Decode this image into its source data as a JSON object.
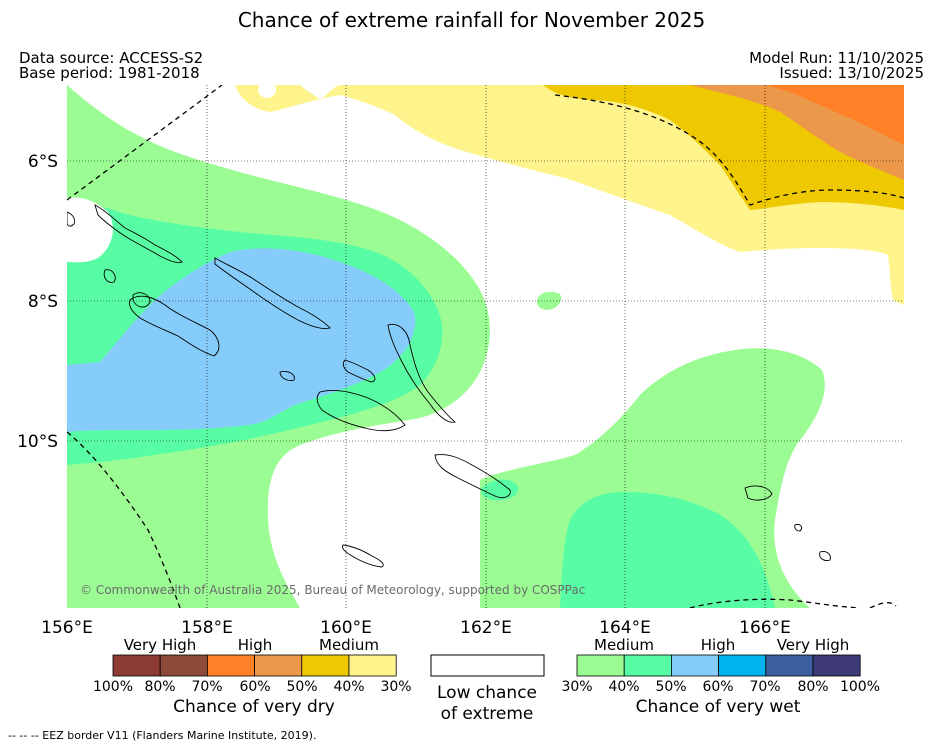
{
  "title": "Chance of extreme rainfall for November 2025",
  "meta": {
    "data_source": "Data source: ACCESS-S2",
    "base_period": "Base period: 1981-2018",
    "model_run": "Model Run: 11/10/2025",
    "issued": "Issued: 13/10/2025"
  },
  "axes": {
    "lon_labels": [
      "156°E",
      "158°E",
      "160°E",
      "162°E",
      "164°E",
      "166°E"
    ],
    "lat_labels": [
      "6°S",
      "8°S",
      "10°S"
    ]
  },
  "copyright": "© Commonwealth of Australia 2025, Bureau of Meteorology, supported by COSPPac",
  "legend": {
    "dry": {
      "headers": [
        "Very High",
        "High",
        "Medium"
      ],
      "ticks": [
        "100%",
        "80%",
        "70%",
        "60%",
        "50%",
        "40%",
        "30%"
      ],
      "colors": [
        "#8b3a34",
        "#8c4a38",
        "#ff8026",
        "#ec984a",
        "#eec800",
        "#fff48c"
      ],
      "caption": "Chance of very dry"
    },
    "low": {
      "line1": "Low chance",
      "line2": "of extreme",
      "color": "#ffffff"
    },
    "wet": {
      "headers": [
        "Medium",
        "High",
        "Very High"
      ],
      "ticks": [
        "30%",
        "40%",
        "50%",
        "60%",
        "70%",
        "80%",
        "100%"
      ],
      "colors": [
        "#9bfc94",
        "#58fca4",
        "#86ccfa",
        "#00b2ee",
        "#3c5fa0",
        "#3e3a78"
      ],
      "caption": "Chance of very wet"
    }
  },
  "footer": "--  --  -- EEZ border V11 (Flanders Marine Institute, 2019)."
}
